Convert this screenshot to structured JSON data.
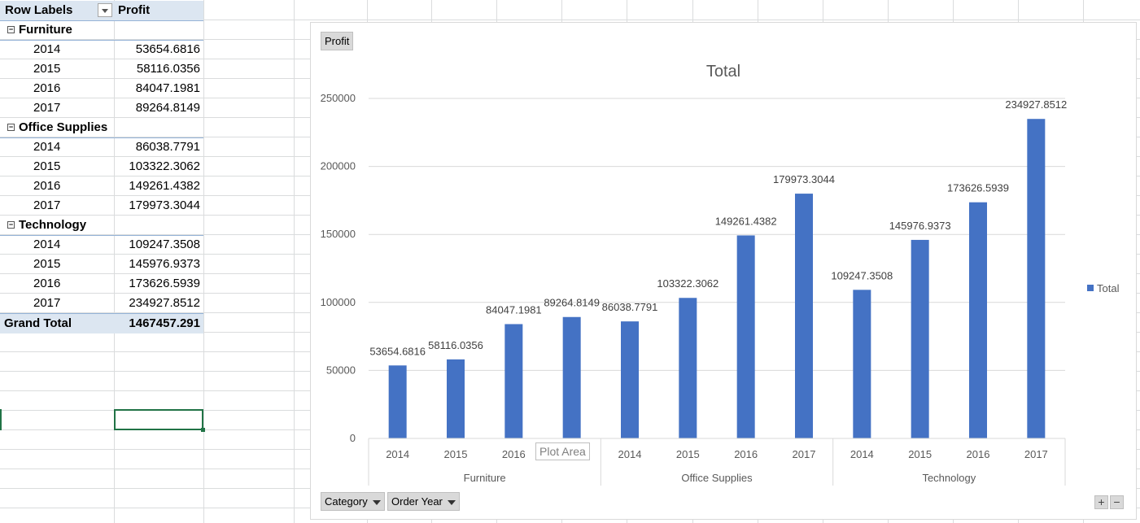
{
  "pivot": {
    "header": {
      "row_labels": "Row Labels",
      "profit": "Profit"
    },
    "groups": [
      {
        "name": "Furniture",
        "rows": [
          {
            "year": "2014",
            "value": "53654.6816"
          },
          {
            "year": "2015",
            "value": "58116.0356"
          },
          {
            "year": "2016",
            "value": "84047.1981"
          },
          {
            "year": "2017",
            "value": "89264.8149"
          }
        ]
      },
      {
        "name": "Office Supplies",
        "rows": [
          {
            "year": "2014",
            "value": "86038.7791"
          },
          {
            "year": "2015",
            "value": "103322.3062"
          },
          {
            "year": "2016",
            "value": "149261.4382"
          },
          {
            "year": "2017",
            "value": "179973.3044"
          }
        ]
      },
      {
        "name": "Technology",
        "rows": [
          {
            "year": "2014",
            "value": "109247.3508"
          },
          {
            "year": "2015",
            "value": "145976.9373"
          },
          {
            "year": "2016",
            "value": "173626.5939"
          },
          {
            "year": "2017",
            "value": "234927.8512"
          }
        ]
      }
    ],
    "grand_total": {
      "label": "Grand Total",
      "value": "1467457.291"
    },
    "collapse_glyph": "−"
  },
  "chart_controls": {
    "value_field_button": "Profit",
    "axis_buttons": [
      "Category",
      "Order Year"
    ],
    "tooltip": "Plot Area",
    "zoom_in": "+",
    "zoom_out": "−"
  },
  "chart_data": {
    "type": "bar",
    "title": "Total",
    "groups": [
      "Furniture",
      "Office Supplies",
      "Technology"
    ],
    "categories": [
      "2014",
      "2015",
      "2016",
      "2017"
    ],
    "series": [
      {
        "name": "Total",
        "color": "#4472c4",
        "values": [
          [
            53654.6816,
            58116.0356,
            84047.1981,
            89264.8149
          ],
          [
            86038.7791,
            103322.3062,
            149261.4382,
            179973.3044
          ],
          [
            109247.3508,
            145976.9373,
            173626.5939,
            234927.8512
          ]
        ]
      }
    ],
    "data_labels": [
      [
        "53654.6816",
        "58116.0356",
        "84047.1981",
        "89264.8149"
      ],
      [
        "86038.7791",
        "103322.3062",
        "149261.4382",
        "179973.3044"
      ],
      [
        "109247.3508",
        "145976.9373",
        "173626.5939",
        "234927.8512"
      ]
    ],
    "yticks": [
      "0",
      "50000",
      "100000",
      "150000",
      "200000",
      "250000"
    ],
    "ylim": [
      0,
      250000
    ],
    "grid": true,
    "legend_placement": "right"
  }
}
